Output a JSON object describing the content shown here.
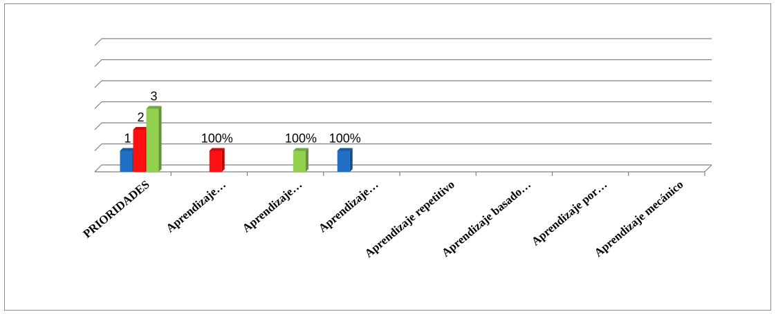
{
  "chart_data": {
    "type": "bar",
    "title": "",
    "xlabel": "",
    "ylabel": "",
    "ylim": [
      0,
      6
    ],
    "grid": true,
    "legend": "none",
    "categories": [
      "PRIORIDADES",
      "Aprendizaje…",
      "Aprendizaje…",
      "Aprendizaje…",
      "Aprendizaje repetitivo",
      "Aprendizaje basado…",
      "Aprendizaje  por…",
      "Aprendizaje mecánico"
    ],
    "series": [
      {
        "color": "#1f6fc4",
        "values": [
          1,
          null,
          null,
          1,
          null,
          null,
          null,
          null
        ],
        "labels": [
          "1",
          "",
          "",
          "100%",
          "",
          "",
          "",
          ""
        ]
      },
      {
        "color": "#ff1010",
        "values": [
          2,
          1,
          null,
          null,
          null,
          null,
          null,
          null
        ],
        "labels": [
          "2",
          "100%",
          "",
          "",
          "",
          "",
          "",
          ""
        ]
      },
      {
        "color": "#92d050",
        "values": [
          3,
          null,
          1,
          null,
          null,
          null,
          null,
          null
        ],
        "labels": [
          "3",
          "",
          "100%",
          "",
          "",
          "",
          "",
          ""
        ]
      }
    ]
  }
}
